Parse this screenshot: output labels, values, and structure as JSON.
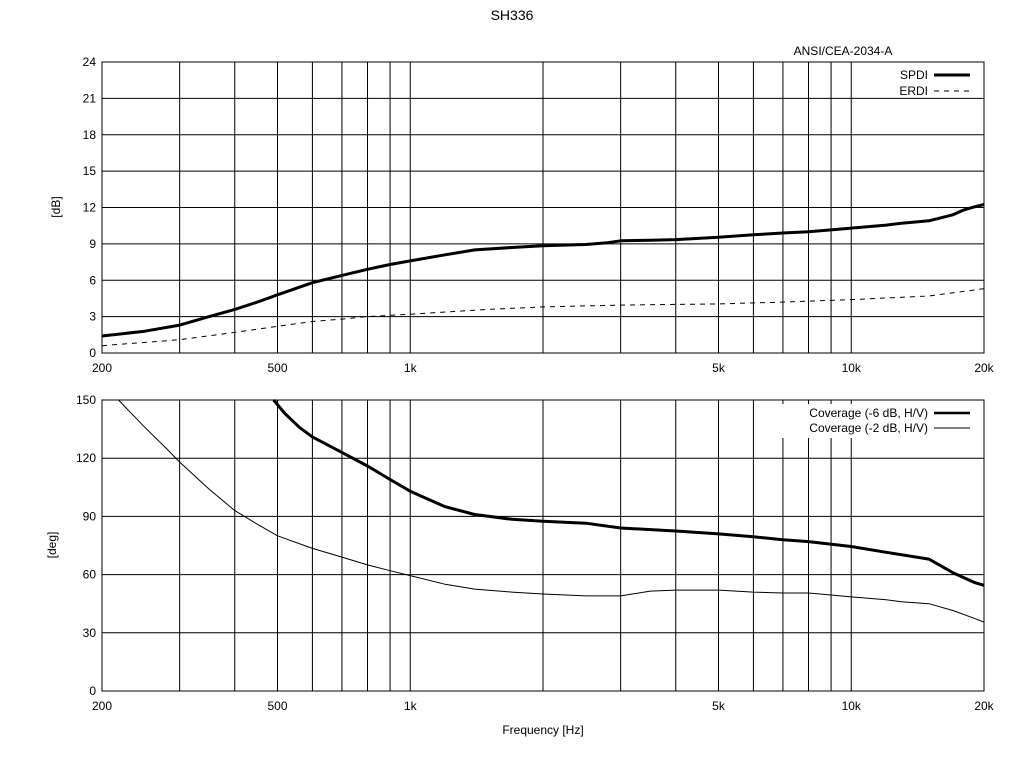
{
  "title": "SH336",
  "chart_data": [
    {
      "type": "line",
      "subtitle": "ANSI/CEA-2034-A",
      "ylabel": "[dB]",
      "xscale": "log",
      "xlim": [
        200,
        20000
      ],
      "ylim": [
        0,
        24
      ],
      "yticks": [
        0,
        3,
        6,
        9,
        12,
        15,
        18,
        21,
        24
      ],
      "xticks": [
        200,
        500,
        1000,
        5000,
        10000,
        20000
      ],
      "xtick_labels": [
        "200",
        "500",
        "1k",
        "5k",
        "10k",
        "20k"
      ],
      "grid": true,
      "legend_position": "top-right",
      "series": [
        {
          "name": "SPDI",
          "style": "thick-solid",
          "x": [
            200,
            250,
            300,
            350,
            400,
            450,
            500,
            600,
            700,
            800,
            900,
            1000,
            1200,
            1400,
            1700,
            2000,
            2500,
            2800,
            3000,
            3500,
            4000,
            5000,
            6000,
            7000,
            8000,
            9000,
            10000,
            12000,
            13000,
            15000,
            17000,
            18000,
            19000,
            20000
          ],
          "y": [
            1.4,
            1.8,
            2.3,
            3.0,
            3.6,
            4.2,
            4.8,
            5.8,
            6.4,
            6.9,
            7.3,
            7.6,
            8.1,
            8.5,
            8.7,
            8.85,
            8.95,
            9.1,
            9.25,
            9.3,
            9.35,
            9.55,
            9.75,
            9.9,
            10.0,
            10.15,
            10.3,
            10.55,
            10.7,
            10.9,
            11.4,
            11.8,
            12.05,
            12.25
          ]
        },
        {
          "name": "ERDI",
          "style": "thin-dashed",
          "x": [
            200,
            300,
            400,
            500,
            600,
            700,
            800,
            1000,
            1500,
            2000,
            3000,
            5000,
            7000,
            10000,
            15000,
            20000
          ],
          "y": [
            0.6,
            1.1,
            1.7,
            2.2,
            2.6,
            2.8,
            3.0,
            3.2,
            3.6,
            3.8,
            3.95,
            4.05,
            4.2,
            4.4,
            4.7,
            5.3
          ]
        }
      ]
    },
    {
      "type": "line",
      "ylabel": "[deg]",
      "xlabel": "Frequency [Hz]",
      "xscale": "log",
      "xlim": [
        200,
        20000
      ],
      "ylim": [
        0,
        150
      ],
      "yticks": [
        0,
        30,
        60,
        90,
        120,
        150
      ],
      "xticks": [
        200,
        500,
        1000,
        5000,
        10000,
        20000
      ],
      "xtick_labels": [
        "200",
        "500",
        "1k",
        "5k",
        "10k",
        "20k"
      ],
      "grid": true,
      "legend_position": "top-right",
      "series": [
        {
          "name": "Coverage (-6 dB, H/V)",
          "style": "thick-solid",
          "x": [
            490,
            520,
            560,
            600,
            700,
            800,
            900,
            1000,
            1200,
            1400,
            1700,
            2000,
            2500,
            3000,
            4000,
            5000,
            6000,
            7000,
            8000,
            10000,
            12000,
            15000,
            17000,
            19000,
            20000
          ],
          "y": [
            150,
            143,
            136,
            131,
            123,
            116,
            109,
            103,
            95,
            91,
            88.5,
            87.5,
            86.5,
            84,
            82.5,
            81,
            79.5,
            78,
            77,
            74.5,
            71.5,
            68,
            61,
            56,
            54.5
          ]
        },
        {
          "name": "Coverage (-2 dB, H/V)",
          "style": "thin-solid",
          "x": [
            218,
            250,
            280,
            300,
            350,
            400,
            450,
            500,
            600,
            700,
            800,
            900,
            1000,
            1200,
            1400,
            1700,
            2000,
            2500,
            3000,
            3500,
            4000,
            5000,
            6000,
            7000,
            8000,
            9000,
            10000,
            12000,
            13000,
            15000,
            17000,
            19000,
            20000
          ],
          "y": [
            150,
            136,
            125,
            118,
            104,
            93,
            86,
            80,
            73.5,
            69,
            65,
            62,
            59.5,
            55,
            52.5,
            51,
            50,
            49,
            49,
            51.5,
            52,
            52,
            51,
            50.5,
            50.5,
            49.5,
            48.5,
            47,
            46,
            45,
            41.5,
            37.5,
            35.5
          ]
        }
      ]
    }
  ]
}
